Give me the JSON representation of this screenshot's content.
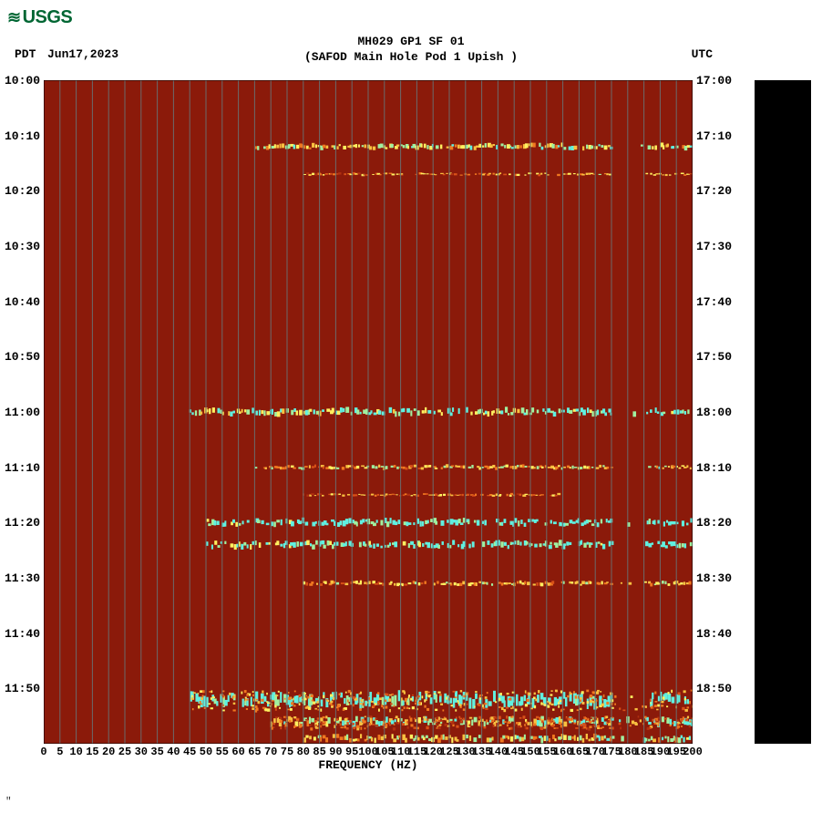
{
  "logo": {
    "text": "USGS",
    "color": "#006633"
  },
  "header": {
    "title_line1": "MH029 GP1 SF 01",
    "title_line2": "(SAFOD Main Hole Pod 1 Upish )",
    "tz_left": "PDT",
    "date": "Jun17,2023",
    "tz_right": "UTC"
  },
  "spectrogram": {
    "type": "heatmap",
    "background_color": "#8b1a0a",
    "gridline_color": "#6b6b6b",
    "text_color": "#000000",
    "font_family": "Courier New",
    "tick_fontsize": 13,
    "label_fontsize": 13,
    "x_axis": {
      "label": "FREQUENCY (HZ)",
      "min": 0,
      "max": 200,
      "tick_step": 5,
      "ticks": [
        0,
        5,
        10,
        15,
        20,
        25,
        30,
        35,
        40,
        45,
        50,
        55,
        60,
        65,
        70,
        75,
        80,
        85,
        90,
        95,
        100,
        105,
        110,
        115,
        120,
        125,
        130,
        135,
        140,
        145,
        150,
        155,
        160,
        165,
        170,
        175,
        180,
        185,
        190,
        195,
        200
      ]
    },
    "y_left": {
      "label": "PDT",
      "ticks": [
        "10:00",
        "10:10",
        "10:20",
        "10:30",
        "10:40",
        "10:50",
        "11:00",
        "11:10",
        "11:20",
        "11:30",
        "11:40",
        "11:50"
      ],
      "range_minutes": [
        0,
        120
      ]
    },
    "y_right": {
      "label": "UTC",
      "ticks": [
        "17:00",
        "17:10",
        "17:20",
        "17:30",
        "17:40",
        "17:50",
        "18:00",
        "18:10",
        "18:20",
        "18:30",
        "18:40",
        "18:50"
      ]
    },
    "colormap": [
      "#8b1a0a",
      "#b03010",
      "#d85018",
      "#f07820",
      "#f8c040",
      "#fff060",
      "#a0f0a0",
      "#60f0e0"
    ],
    "color_low": "#8b1a0a",
    "color_mid1": "#d85018",
    "color_mid2": "#f8c040",
    "color_mid3": "#fff060",
    "color_high": "#60f0e0",
    "events": [
      {
        "t_min": 12,
        "f_start": 65,
        "f_end": 200,
        "intensity": 0.55,
        "thickness": 4
      },
      {
        "t_min": 17,
        "f_start": 80,
        "f_end": 200,
        "intensity": 0.35,
        "thickness": 2
      },
      {
        "t_min": 60,
        "f_start": 45,
        "f_end": 200,
        "intensity": 0.7,
        "thickness": 5
      },
      {
        "t_min": 70,
        "f_start": 65,
        "f_end": 200,
        "intensity": 0.45,
        "thickness": 3
      },
      {
        "t_min": 75,
        "f_start": 80,
        "f_end": 160,
        "intensity": 0.3,
        "thickness": 2
      },
      {
        "t_min": 80,
        "f_start": 50,
        "f_end": 200,
        "intensity": 0.85,
        "thickness": 5
      },
      {
        "t_min": 84,
        "f_start": 50,
        "f_end": 200,
        "intensity": 0.8,
        "thickness": 5
      },
      {
        "t_min": 91,
        "f_start": 80,
        "f_end": 200,
        "intensity": 0.4,
        "thickness": 3
      },
      {
        "t_min": 112,
        "f_start": 45,
        "f_end": 200,
        "intensity": 0.9,
        "thickness": 10
      },
      {
        "t_min": 116,
        "f_start": 70,
        "f_end": 200,
        "intensity": 0.6,
        "thickness": 6
      },
      {
        "t_min": 119,
        "f_start": 80,
        "f_end": 200,
        "intensity": 0.5,
        "thickness": 5
      }
    ],
    "gap_band": {
      "f_start": 175,
      "f_end": 185
    }
  },
  "colorbar": {
    "fill": "#000000"
  },
  "footer_mark": "\""
}
